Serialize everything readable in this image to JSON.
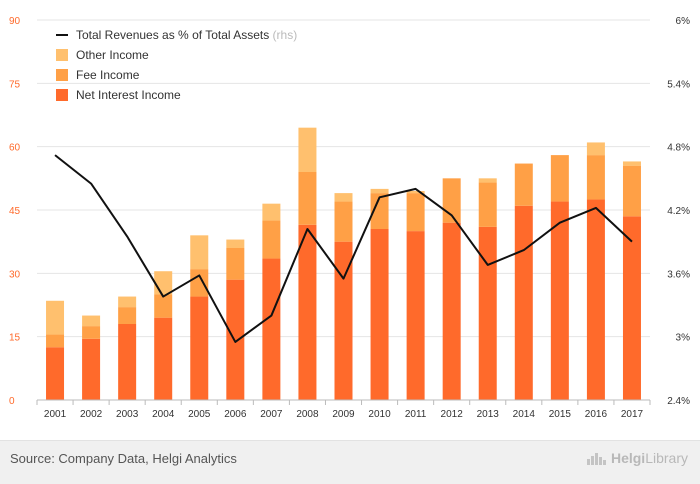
{
  "chart_data": {
    "type": "bar",
    "stacked": true,
    "categories": [
      "2001",
      "2002",
      "2003",
      "2004",
      "2005",
      "2006",
      "2007",
      "2008",
      "2009",
      "2010",
      "2011",
      "2012",
      "2013",
      "2014",
      "2015",
      "2016",
      "2017"
    ],
    "series": [
      {
        "name": "Net Interest Income",
        "color": "#ff6a2b",
        "values": [
          12.5,
          14.5,
          18.0,
          19.5,
          24.5,
          28.5,
          33.5,
          41.5,
          37.5,
          40.5,
          40.0,
          42.0,
          41.0,
          46.0,
          47.0,
          47.5,
          43.5
        ]
      },
      {
        "name": "Fee Income",
        "color": "#ffa046",
        "values": [
          3.0,
          3.0,
          4.0,
          5.5,
          6.5,
          7.5,
          9.0,
          12.5,
          9.5,
          8.5,
          9.0,
          10.5,
          10.5,
          10.0,
          11.0,
          10.5,
          12.0
        ]
      },
      {
        "name": "Other Income",
        "color": "#ffc06e",
        "values": [
          8.0,
          2.5,
          2.5,
          5.5,
          8.0,
          2.0,
          4.0,
          10.5,
          2.0,
          1.0,
          0.5,
          0.0,
          1.0,
          0.0,
          0.0,
          3.0,
          1.0
        ]
      }
    ],
    "line": {
      "name": "Total Revenues as % of Total Assets",
      "name_suffix": " (rhs)",
      "color": "#111111",
      "values": [
        4.72,
        4.45,
        3.95,
        3.38,
        3.58,
        2.95,
        3.2,
        4.02,
        3.55,
        4.32,
        4.4,
        4.15,
        3.68,
        3.82,
        4.08,
        4.22,
        3.9
      ]
    },
    "ylim": [
      0,
      90
    ],
    "yticks": [
      "0",
      "15",
      "30",
      "45",
      "60",
      "75",
      "90"
    ],
    "y2lim": [
      2.4,
      6.0
    ],
    "y2ticks": [
      "2.4%",
      "3%",
      "3.6%",
      "4.2%",
      "4.8%",
      "5.4%",
      "6%"
    ],
    "legend_position": "top-left",
    "grid": true
  },
  "footer": {
    "source": "Source: Company Data, Helgi Analytics",
    "logo_main": "Helgi",
    "logo_sub": "Library"
  }
}
